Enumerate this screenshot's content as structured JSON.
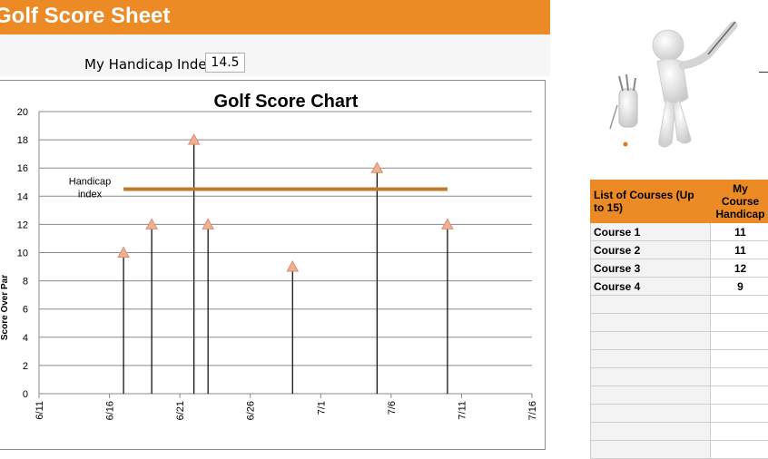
{
  "sheet": {
    "title": "Golf Score Sheet",
    "handicap_label": "My Handicap Index:",
    "handicap_value": "14.5"
  },
  "colors": {
    "banner": "#ec8a25",
    "handicap_line": "#c07a2c",
    "marker": "#f0b094"
  },
  "chart_data": {
    "type": "scatter",
    "title": "Golf Score Chart",
    "ylabel": "Score Over Par",
    "xlabel": "",
    "ylim": [
      0,
      20
    ],
    "yticks": [
      0,
      2,
      4,
      6,
      8,
      10,
      12,
      14,
      16,
      18,
      20
    ],
    "xlim": [
      "6/11",
      "7/16"
    ],
    "xticks": [
      "6/11",
      "6/16",
      "6/21",
      "6/26",
      "7/1",
      "7/6",
      "7/11",
      "7/16"
    ],
    "grid": true,
    "points": [
      {
        "x": "6/17",
        "y": 10
      },
      {
        "x": "6/19",
        "y": 12
      },
      {
        "x": "6/22",
        "y": 18
      },
      {
        "x": "6/23",
        "y": 12
      },
      {
        "x": "6/29",
        "y": 9
      },
      {
        "x": "7/5",
        "y": 16
      },
      {
        "x": "7/10",
        "y": 12
      }
    ],
    "handicap_line": {
      "label": "Handicap index",
      "y": 14.5,
      "x_start": "6/17",
      "x_end": "7/10"
    }
  },
  "courses": {
    "header_col1": "List of Courses (Up to 15)",
    "header_col2": "My Course Handicap",
    "rows": [
      {
        "name": "Course 1",
        "handicap": "11"
      },
      {
        "name": "Course 2",
        "handicap": "11"
      },
      {
        "name": "Course 3",
        "handicap": "12"
      },
      {
        "name": "Course 4",
        "handicap": "9"
      },
      {
        "name": "",
        "handicap": ""
      },
      {
        "name": "",
        "handicap": ""
      },
      {
        "name": "",
        "handicap": ""
      },
      {
        "name": "",
        "handicap": ""
      },
      {
        "name": "",
        "handicap": ""
      },
      {
        "name": "",
        "handicap": ""
      },
      {
        "name": "",
        "handicap": ""
      },
      {
        "name": "",
        "handicap": ""
      },
      {
        "name": "",
        "handicap": ""
      }
    ]
  },
  "illustration": {
    "icon": "golfer-figure-icon"
  }
}
